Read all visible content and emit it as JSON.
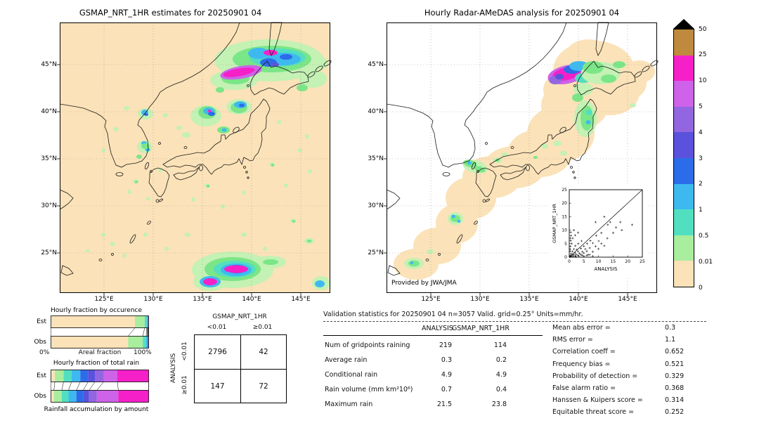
{
  "maps": {
    "left": {
      "title": "GSMAP_NRT_1HR estimates for 20250901 04",
      "lat_ticks": [
        "45°N",
        "40°N",
        "35°N",
        "30°N",
        "25°N"
      ],
      "lon_ticks": [
        "125°E",
        "130°E",
        "135°E",
        "140°E",
        "145°E"
      ]
    },
    "right": {
      "title": "Hourly Radar-AMeDAS analysis for 20250901 04",
      "lat_ticks": [
        "45°N",
        "40°N",
        "35°N",
        "30°N",
        "25°N"
      ],
      "lon_ticks": [
        "125°E",
        "130°E",
        "135°E",
        "140°E",
        "145°E"
      ],
      "credit": "Provided by JWA/JMA"
    }
  },
  "colorbar": {
    "units": "mm/hr",
    "labels_top_to_bottom": [
      "50",
      "25",
      "10",
      "5",
      "4",
      "3",
      "2",
      "1",
      "0.5",
      "0.01",
      "0"
    ],
    "band_colors_top_to_bottom": [
      "#C08A3E",
      "#F520C8",
      "#CE62E8",
      "#9266E0",
      "#5A52DC",
      "#2C6CE8",
      "#3EB9F0",
      "#52DFC0",
      "#A9ED9E",
      "#FBE2B8"
    ],
    "over_range_marker": "black-triangle"
  },
  "chart_data": [
    {
      "id": "hourly_fraction_by_occurrence",
      "type": "bar",
      "title": "Hourly fraction by occurence",
      "orientation": "horizontal-stacked",
      "categories": [
        "Est",
        "Obs"
      ],
      "bins_mm_per_hr": [
        "0-0.01",
        "0.01-0.5",
        "0.5-1",
        "1-2",
        "2-3",
        "3-4",
        "4-5",
        "5-10",
        "10-25",
        "25-50"
      ],
      "series": [
        {
          "name": "Est",
          "fractions": [
            0.86,
            0.1,
            0.02,
            0.008,
            0.004,
            0.003,
            0.002,
            0.001,
            0.001,
            0.001
          ]
        },
        {
          "name": "Obs",
          "fractions": [
            0.79,
            0.15,
            0.035,
            0.012,
            0.006,
            0.003,
            0.002,
            0.001,
            0.0005,
            0.0005
          ]
        }
      ],
      "xlabel": "Areal fraction",
      "x_tick_labels": [
        "0%",
        "100%"
      ],
      "xlim": [
        0,
        1
      ]
    },
    {
      "id": "hourly_fraction_of_total_rain",
      "type": "bar",
      "title": "Hourly fraction of total rain",
      "orientation": "horizontal-stacked",
      "categories": [
        "Est",
        "Obs"
      ],
      "bins_mm_per_hr": [
        "0-0.01",
        "0.01-0.5",
        "0.5-1",
        "1-2",
        "2-3",
        "3-4",
        "4-5",
        "5-10",
        "10-25",
        "25-50"
      ],
      "series": [
        {
          "name": "Est",
          "fractions": [
            0.04,
            0.09,
            0.08,
            0.09,
            0.08,
            0.07,
            0.09,
            0.14,
            0.32,
            0.0
          ]
        },
        {
          "name": "Obs",
          "fractions": [
            0.03,
            0.08,
            0.07,
            0.08,
            0.07,
            0.06,
            0.08,
            0.22,
            0.31,
            0.0
          ]
        }
      ],
      "xlabel": "Rainfall accumulation by amount",
      "xlim": [
        0,
        1
      ]
    },
    {
      "id": "contingency_table",
      "type": "table",
      "col_group_label": "GSMAP_NRT_1HR",
      "row_group_label": "ANALYSIS",
      "col_headers": [
        "<0.01",
        "≥0.01"
      ],
      "row_headers": [
        "<0.01",
        "≥0.01"
      ],
      "values": [
        [
          "2796",
          "42"
        ],
        [
          "147",
          "72"
        ]
      ]
    },
    {
      "id": "validation_statistics",
      "type": "table",
      "title": "Validation statistics for 20250901 04  n=3057 Valid. grid=0.25° Units=mm/hr.",
      "col_headers": [
        "ANALYSIS",
        "GSMAP_NRT_1HR"
      ],
      "rows": [
        {
          "label": "Num of gridpoints raining",
          "analysis": "219",
          "gsmap": "114"
        },
        {
          "label": "Average rain",
          "analysis": "0.3",
          "gsmap": "0.2"
        },
        {
          "label": "Conditional rain",
          "analysis": "4.9",
          "gsmap": "4.9"
        },
        {
          "label": "Rain volume (mm km²10⁶)",
          "analysis": "0.7",
          "gsmap": "0.4"
        },
        {
          "label": "Maximum rain",
          "analysis": "21.5",
          "gsmap": "23.8"
        }
      ]
    },
    {
      "id": "skill_scores",
      "type": "table",
      "rows": [
        {
          "label": "Mean abs error =",
          "value": "0.3"
        },
        {
          "label": "RMS error =",
          "value": "1.1"
        },
        {
          "label": "Correlation coeff =",
          "value": "0.652"
        },
        {
          "label": "Frequency bias =",
          "value": "0.521"
        },
        {
          "label": "Probability of detection =",
          "value": "0.329"
        },
        {
          "label": "False alarm ratio =",
          "value": "0.368"
        },
        {
          "label": "Hanssen & Kuipers score =",
          "value": "0.314"
        },
        {
          "label": "Equitable threat score =",
          "value": "0.252"
        }
      ]
    },
    {
      "id": "inset_scatter",
      "type": "scatter",
      "xlabel": "ANALYSIS",
      "ylabel": "GSMAP_NRT_1HR",
      "xlim": [
        0,
        25
      ],
      "ylim": [
        0,
        25
      ],
      "ticks": [
        0,
        5,
        10,
        15,
        20,
        25
      ],
      "diagonal_line": true,
      "points": [
        [
          0.2,
          0.1
        ],
        [
          0.3,
          0.6
        ],
        [
          0.5,
          0.2
        ],
        [
          0.6,
          1.3
        ],
        [
          0.8,
          0.4
        ],
        [
          1,
          0.9
        ],
        [
          1.1,
          2.1
        ],
        [
          1.3,
          0.3
        ],
        [
          1.5,
          1
        ],
        [
          1.6,
          3
        ],
        [
          2,
          0.5
        ],
        [
          2,
          1.6
        ],
        [
          2.1,
          4.2
        ],
        [
          2.4,
          1
        ],
        [
          2.6,
          2.8
        ],
        [
          3,
          0.7
        ],
        [
          3,
          2.1
        ],
        [
          3.1,
          5
        ],
        [
          3.5,
          1.4
        ],
        [
          4,
          1
        ],
        [
          4,
          3.2
        ],
        [
          4.2,
          6
        ],
        [
          4.5,
          2
        ],
        [
          5,
          1.5
        ],
        [
          5,
          4.1
        ],
        [
          5.5,
          3
        ],
        [
          6,
          2.2
        ],
        [
          6.1,
          5
        ],
        [
          6.5,
          0.9
        ],
        [
          7,
          3.4
        ],
        [
          7.2,
          6.1
        ],
        [
          8,
          2
        ],
        [
          8.1,
          5.2
        ],
        [
          9,
          4
        ],
        [
          9.2,
          8
        ],
        [
          10,
          3.1
        ],
        [
          10.1,
          6
        ],
        [
          11,
          5
        ],
        [
          11,
          9
        ],
        [
          12,
          4.2
        ],
        [
          13,
          7
        ],
        [
          13.2,
          12
        ],
        [
          14,
          13
        ],
        [
          15,
          9
        ],
        [
          16,
          11
        ],
        [
          17.5,
          13
        ],
        [
          18,
          10
        ],
        [
          21.5,
          12
        ],
        [
          0.3,
          2.2
        ],
        [
          0.4,
          4
        ],
        [
          0.5,
          6.1
        ],
        [
          0.6,
          8
        ],
        [
          0.3,
          3
        ],
        [
          0.8,
          5
        ],
        [
          1.2,
          7
        ],
        [
          0.5,
          9.2
        ],
        [
          2,
          8.1
        ],
        [
          1.6,
          10
        ],
        [
          3,
          9.1
        ],
        [
          0.4,
          7
        ],
        [
          5,
          0.3
        ],
        [
          6,
          0.6
        ],
        [
          7,
          0.9
        ],
        [
          8,
          0.4
        ],
        [
          2.2,
          0.2
        ],
        [
          3.3,
          0.4
        ],
        [
          4.4,
          0.7
        ],
        [
          12,
          15
        ],
        [
          9,
          13
        ]
      ]
    }
  ]
}
